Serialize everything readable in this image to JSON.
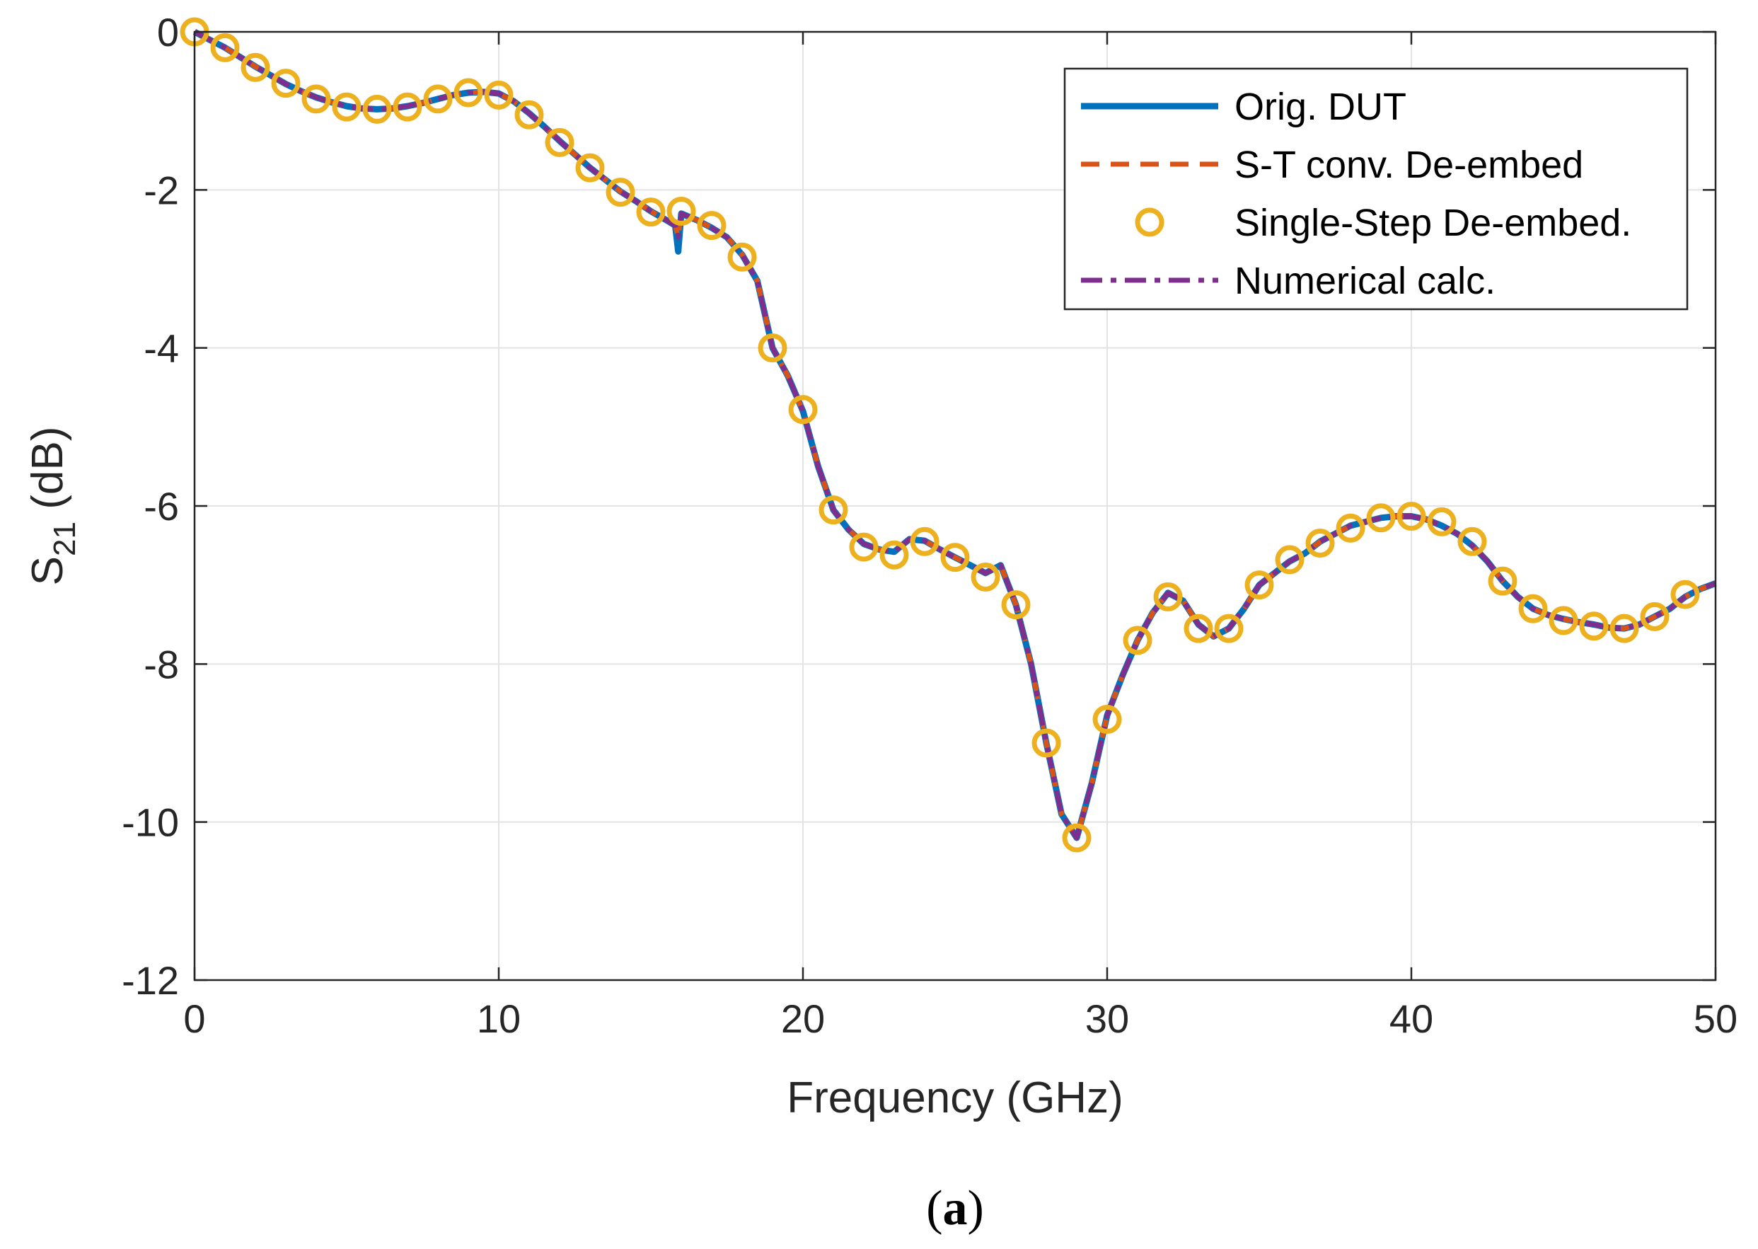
{
  "chart_data": {
    "type": "line",
    "title": "",
    "xlabel": "Frequency (GHz)",
    "ylabel_main": "S",
    "ylabel_sub": "21",
    "ylabel_unit": " (dB)",
    "xlim": [
      0,
      50
    ],
    "ylim": [
      -12,
      0
    ],
    "xticks": [
      0,
      10,
      20,
      30,
      40,
      50
    ],
    "yticks": [
      0,
      -2,
      -4,
      -6,
      -8,
      -10,
      -12
    ],
    "xtick_labels": [
      "0",
      "10",
      "20",
      "30",
      "40",
      "50"
    ],
    "ytick_labels": [
      "0",
      "-2",
      "-4",
      "-6",
      "-8",
      "-10",
      "-12"
    ],
    "grid": true,
    "legend_position": "top-right",
    "caption_open": "(",
    "caption_letter": "a",
    "caption_close": ")",
    "x": [
      0,
      0.5,
      1,
      1.5,
      2,
      2.5,
      3,
      3.5,
      4,
      4.5,
      5,
      5.5,
      6,
      6.5,
      7,
      7.5,
      8,
      8.5,
      9,
      9.5,
      10,
      10.5,
      11,
      11.5,
      12,
      12.5,
      13,
      13.5,
      14,
      14.5,
      15,
      15.5,
      15.8,
      15.9,
      16,
      16.5,
      17,
      17.5,
      18,
      18.5,
      19,
      19.5,
      20,
      20.5,
      21,
      21.5,
      22,
      22.5,
      23,
      23.5,
      24,
      24.5,
      25,
      25.5,
      26,
      26.5,
      27,
      27.5,
      28,
      28.5,
      29,
      29.5,
      30,
      30.5,
      31,
      31.5,
      32,
      32.5,
      33,
      33.5,
      34,
      34.5,
      35,
      35.5,
      36,
      36.5,
      37,
      37.5,
      38,
      38.5,
      39,
      39.5,
      40,
      40.5,
      41,
      41.5,
      42,
      42.5,
      43,
      43.5,
      44,
      44.5,
      45,
      45.5,
      46,
      46.5,
      47,
      47.5,
      48,
      48.5,
      49,
      49.5,
      50
    ],
    "series": [
      {
        "name": "Orig. DUT",
        "color": "#0072BD",
        "style": "solid",
        "values": [
          0,
          -0.1,
          -0.2,
          -0.32,
          -0.44,
          -0.55,
          -0.66,
          -0.75,
          -0.83,
          -0.89,
          -0.94,
          -0.97,
          -0.98,
          -0.97,
          -0.94,
          -0.9,
          -0.85,
          -0.8,
          -0.77,
          -0.76,
          -0.78,
          -0.88,
          -1.03,
          -1.2,
          -1.38,
          -1.55,
          -1.72,
          -1.87,
          -2.02,
          -2.14,
          -2.27,
          -2.38,
          -2.45,
          -2.78,
          -2.3,
          -2.38,
          -2.48,
          -2.6,
          -2.82,
          -3.15,
          -4.0,
          -4.35,
          -4.8,
          -5.5,
          -6.05,
          -6.3,
          -6.48,
          -6.55,
          -6.58,
          -6.42,
          -6.44,
          -6.55,
          -6.65,
          -6.75,
          -6.85,
          -6.75,
          -7.25,
          -8.0,
          -9.0,
          -9.9,
          -10.2,
          -9.5,
          -8.65,
          -8.15,
          -7.7,
          -7.35,
          -7.1,
          -7.2,
          -7.5,
          -7.65,
          -7.55,
          -7.3,
          -7.0,
          -6.85,
          -6.7,
          -6.6,
          -6.45,
          -6.35,
          -6.25,
          -6.2,
          -6.15,
          -6.13,
          -6.13,
          -6.17,
          -6.25,
          -6.35,
          -6.5,
          -6.7,
          -6.95,
          -7.15,
          -7.3,
          -7.38,
          -7.43,
          -7.47,
          -7.5,
          -7.54,
          -7.55,
          -7.5,
          -7.4,
          -7.3,
          -7.15,
          -7.05,
          -6.98
        ]
      },
      {
        "name": "S-T conv. De-embed",
        "color": "#D95319",
        "style": "dashed",
        "values": [
          0,
          -0.1,
          -0.2,
          -0.32,
          -0.44,
          -0.55,
          -0.66,
          -0.75,
          -0.83,
          -0.89,
          -0.94,
          -0.97,
          -0.98,
          -0.97,
          -0.94,
          -0.9,
          -0.85,
          -0.8,
          -0.77,
          -0.76,
          -0.78,
          -0.88,
          -1.03,
          -1.2,
          -1.38,
          -1.55,
          -1.72,
          -1.87,
          -2.02,
          -2.14,
          -2.27,
          -2.38,
          -2.45,
          -2.6,
          -2.3,
          -2.38,
          -2.48,
          -2.6,
          -2.82,
          -3.15,
          -4.0,
          -4.35,
          -4.8,
          -5.5,
          -6.05,
          -6.3,
          -6.48,
          -6.55,
          -6.58,
          -6.42,
          -6.44,
          -6.55,
          -6.65,
          -6.75,
          -6.85,
          -6.75,
          -7.25,
          -8.0,
          -9.0,
          -9.9,
          -10.2,
          -9.5,
          -8.65,
          -8.15,
          -7.7,
          -7.35,
          -7.1,
          -7.2,
          -7.5,
          -7.65,
          -7.55,
          -7.3,
          -7.0,
          -6.85,
          -6.7,
          -6.6,
          -6.45,
          -6.35,
          -6.25,
          -6.2,
          -6.15,
          -6.13,
          -6.13,
          -6.17,
          -6.25,
          -6.35,
          -6.5,
          -6.7,
          -6.95,
          -7.15,
          -7.3,
          -7.38,
          -7.43,
          -7.47,
          -7.5,
          -7.54,
          -7.55,
          -7.5,
          -7.4,
          -7.3,
          -7.15,
          -7.05,
          -6.98
        ]
      },
      {
        "name": "Numerical calc.",
        "color": "#7E2F8E",
        "style": "dashdot",
        "values": [
          0,
          -0.1,
          -0.2,
          -0.32,
          -0.44,
          -0.55,
          -0.66,
          -0.75,
          -0.83,
          -0.89,
          -0.94,
          -0.97,
          -0.98,
          -0.97,
          -0.94,
          -0.9,
          -0.85,
          -0.8,
          -0.77,
          -0.76,
          -0.78,
          -0.88,
          -1.03,
          -1.2,
          -1.38,
          -1.55,
          -1.72,
          -1.87,
          -2.02,
          -2.14,
          -2.27,
          -2.38,
          -2.45,
          -2.6,
          -2.3,
          -2.38,
          -2.48,
          -2.6,
          -2.82,
          -3.15,
          -4.0,
          -4.35,
          -4.8,
          -5.5,
          -6.05,
          -6.3,
          -6.48,
          -6.55,
          -6.58,
          -6.42,
          -6.44,
          -6.55,
          -6.65,
          -6.75,
          -6.85,
          -6.75,
          -7.25,
          -8.0,
          -9.0,
          -9.9,
          -10.2,
          -9.5,
          -8.65,
          -8.15,
          -7.7,
          -7.35,
          -7.1,
          -7.2,
          -7.5,
          -7.65,
          -7.55,
          -7.3,
          -7.0,
          -6.85,
          -6.7,
          -6.6,
          -6.45,
          -6.35,
          -6.25,
          -6.2,
          -6.15,
          -6.13,
          -6.13,
          -6.17,
          -6.25,
          -6.35,
          -6.5,
          -6.7,
          -6.95,
          -7.15,
          -7.3,
          -7.38,
          -7.43,
          -7.47,
          -7.5,
          -7.54,
          -7.55,
          -7.5,
          -7.4,
          -7.3,
          -7.15,
          -7.05,
          -6.98
        ]
      }
    ],
    "markers": {
      "name": "Single-Step De-embed.",
      "color": "#EDB120",
      "style": "circle",
      "x": [
        0,
        1,
        2,
        3,
        4,
        5,
        6,
        7,
        8,
        9,
        10,
        11,
        12,
        13,
        14,
        15,
        16,
        17,
        18,
        19,
        20,
        21,
        22,
        23,
        24,
        25,
        26,
        27,
        28,
        29,
        30,
        31,
        32,
        33,
        34,
        35,
        36,
        37,
        38,
        39,
        40,
        41,
        42,
        43,
        44,
        45,
        46,
        47,
        48,
        49
      ],
      "y": [
        0,
        -0.2,
        -0.45,
        -0.65,
        -0.85,
        -0.95,
        -0.98,
        -0.95,
        -0.85,
        -0.77,
        -0.8,
        -1.05,
        -1.4,
        -1.72,
        -2.03,
        -2.28,
        -2.27,
        -2.45,
        -2.85,
        -4.0,
        -4.78,
        -6.05,
        -6.52,
        -6.62,
        -6.45,
        -6.65,
        -6.9,
        -7.25,
        -9.0,
        -10.2,
        -8.7,
        -7.7,
        -7.15,
        -7.55,
        -7.55,
        -7.0,
        -6.68,
        -6.47,
        -6.28,
        -6.15,
        -6.13,
        -6.2,
        -6.45,
        -6.95,
        -7.3,
        -7.45,
        -7.52,
        -7.55,
        -7.4,
        -7.12
      ]
    }
  }
}
